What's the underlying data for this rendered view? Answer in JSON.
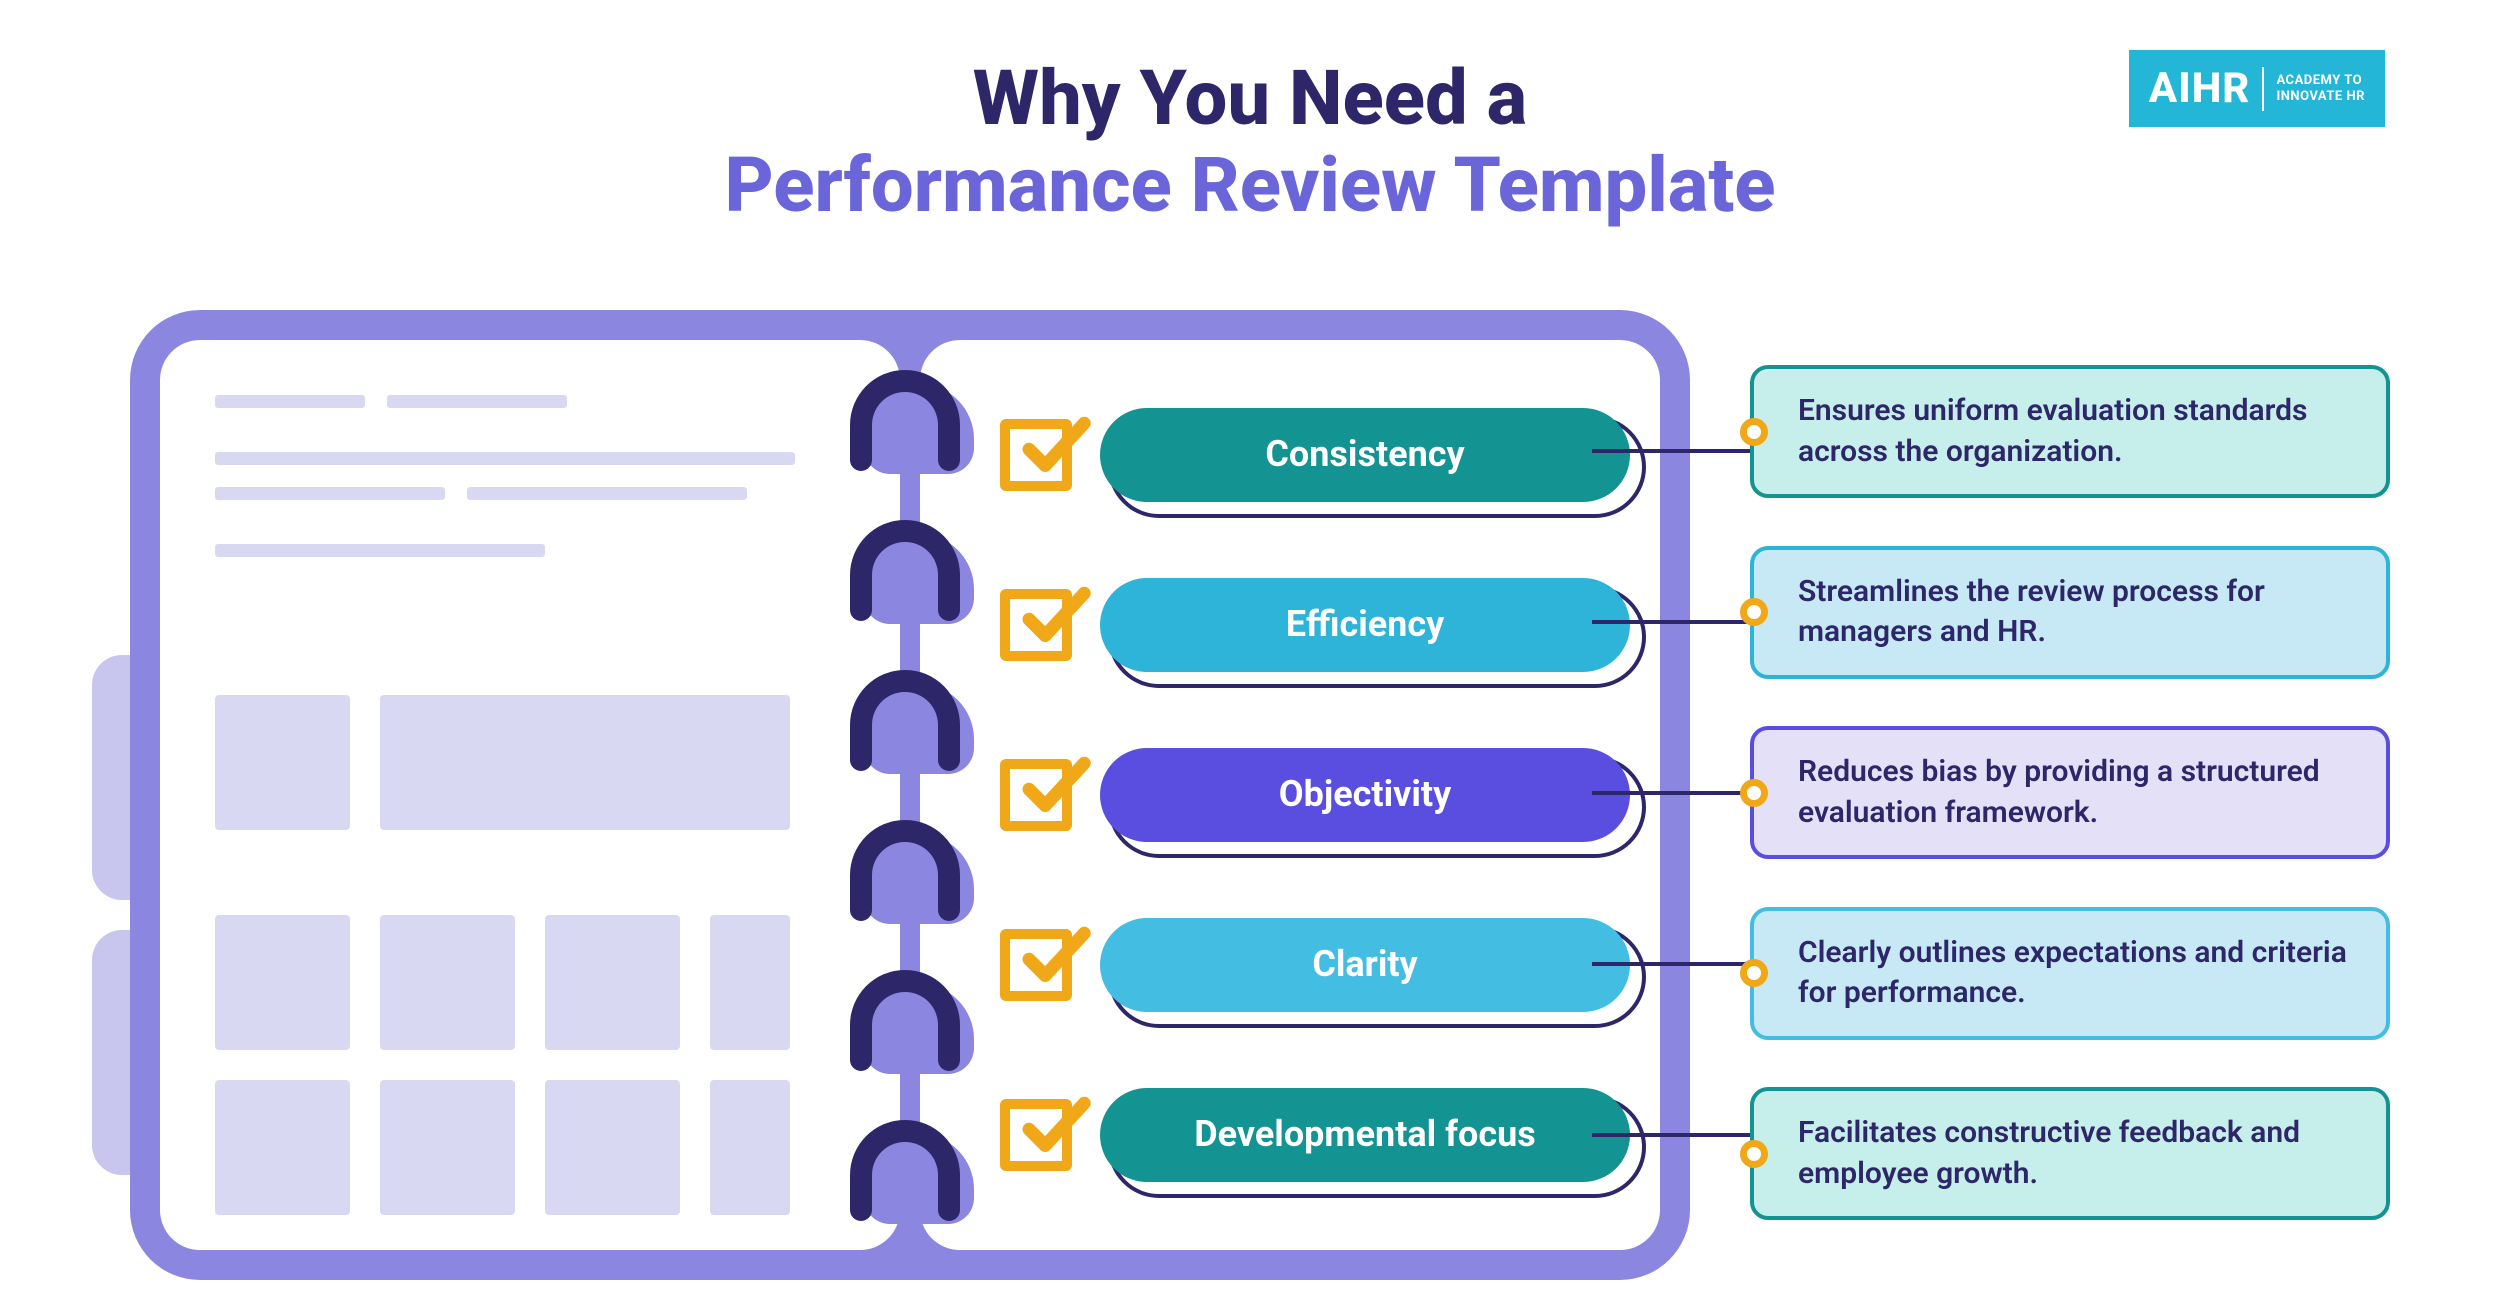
{
  "title": {
    "line1": "Why You Need a",
    "line2": "Performance Review Template",
    "line1_color": "#2d2668",
    "line2_color": "#6a65d8",
    "fontsize": 76
  },
  "logo": {
    "main": "AIHR",
    "sub_line1": "ACADEMY TO",
    "sub_line2": "INNOVATE HR",
    "bg_color": "#24b6d6",
    "text_color": "#ffffff"
  },
  "notebook": {
    "cover_color": "#8b87e0",
    "page_color": "#ffffff",
    "tab_color": "#c8c6ef",
    "ring_color": "#2d2668",
    "ring_shadow_color": "#8b87e0",
    "placeholder_color": "#d9d8f2",
    "border_radius": 70
  },
  "checkbox": {
    "border_color": "#f0a818",
    "check_color": "#f0a818"
  },
  "pill_outline_color": "#2d2668",
  "connector_color": "#2d2668",
  "card_dot_border": "#f0a818",
  "card_text_color": "#2d2668",
  "items": [
    {
      "label": "Consistency",
      "pill_color": "#139392",
      "card_bg": "#c6eeea",
      "card_border": "#139392",
      "description": "Ensures uniform evaluation standards across the organization."
    },
    {
      "label": "Efficiency",
      "pill_color": "#2db4d8",
      "card_bg": "#c7e8f5",
      "card_border": "#2db4d8",
      "description": "Streamlines the review process for managers and HR."
    },
    {
      "label": "Objectivity",
      "pill_color": "#5a4ee0",
      "card_bg": "#e3e0f8",
      "card_border": "#5a4ee0",
      "description": "Reduces bias by providing a structured evaluation framework."
    },
    {
      "label": "Clarity",
      "pill_color": "#44bde2",
      "card_bg": "#c7e8f5",
      "card_border": "#44bde2",
      "description": "Clearly outlines expectations and criteria for performance."
    },
    {
      "label": "Developmental focus",
      "pill_color": "#139392",
      "card_bg": "#c6eeea",
      "card_border": "#139392",
      "description": "Facilitates constructive feedback and employee growth."
    }
  ]
}
